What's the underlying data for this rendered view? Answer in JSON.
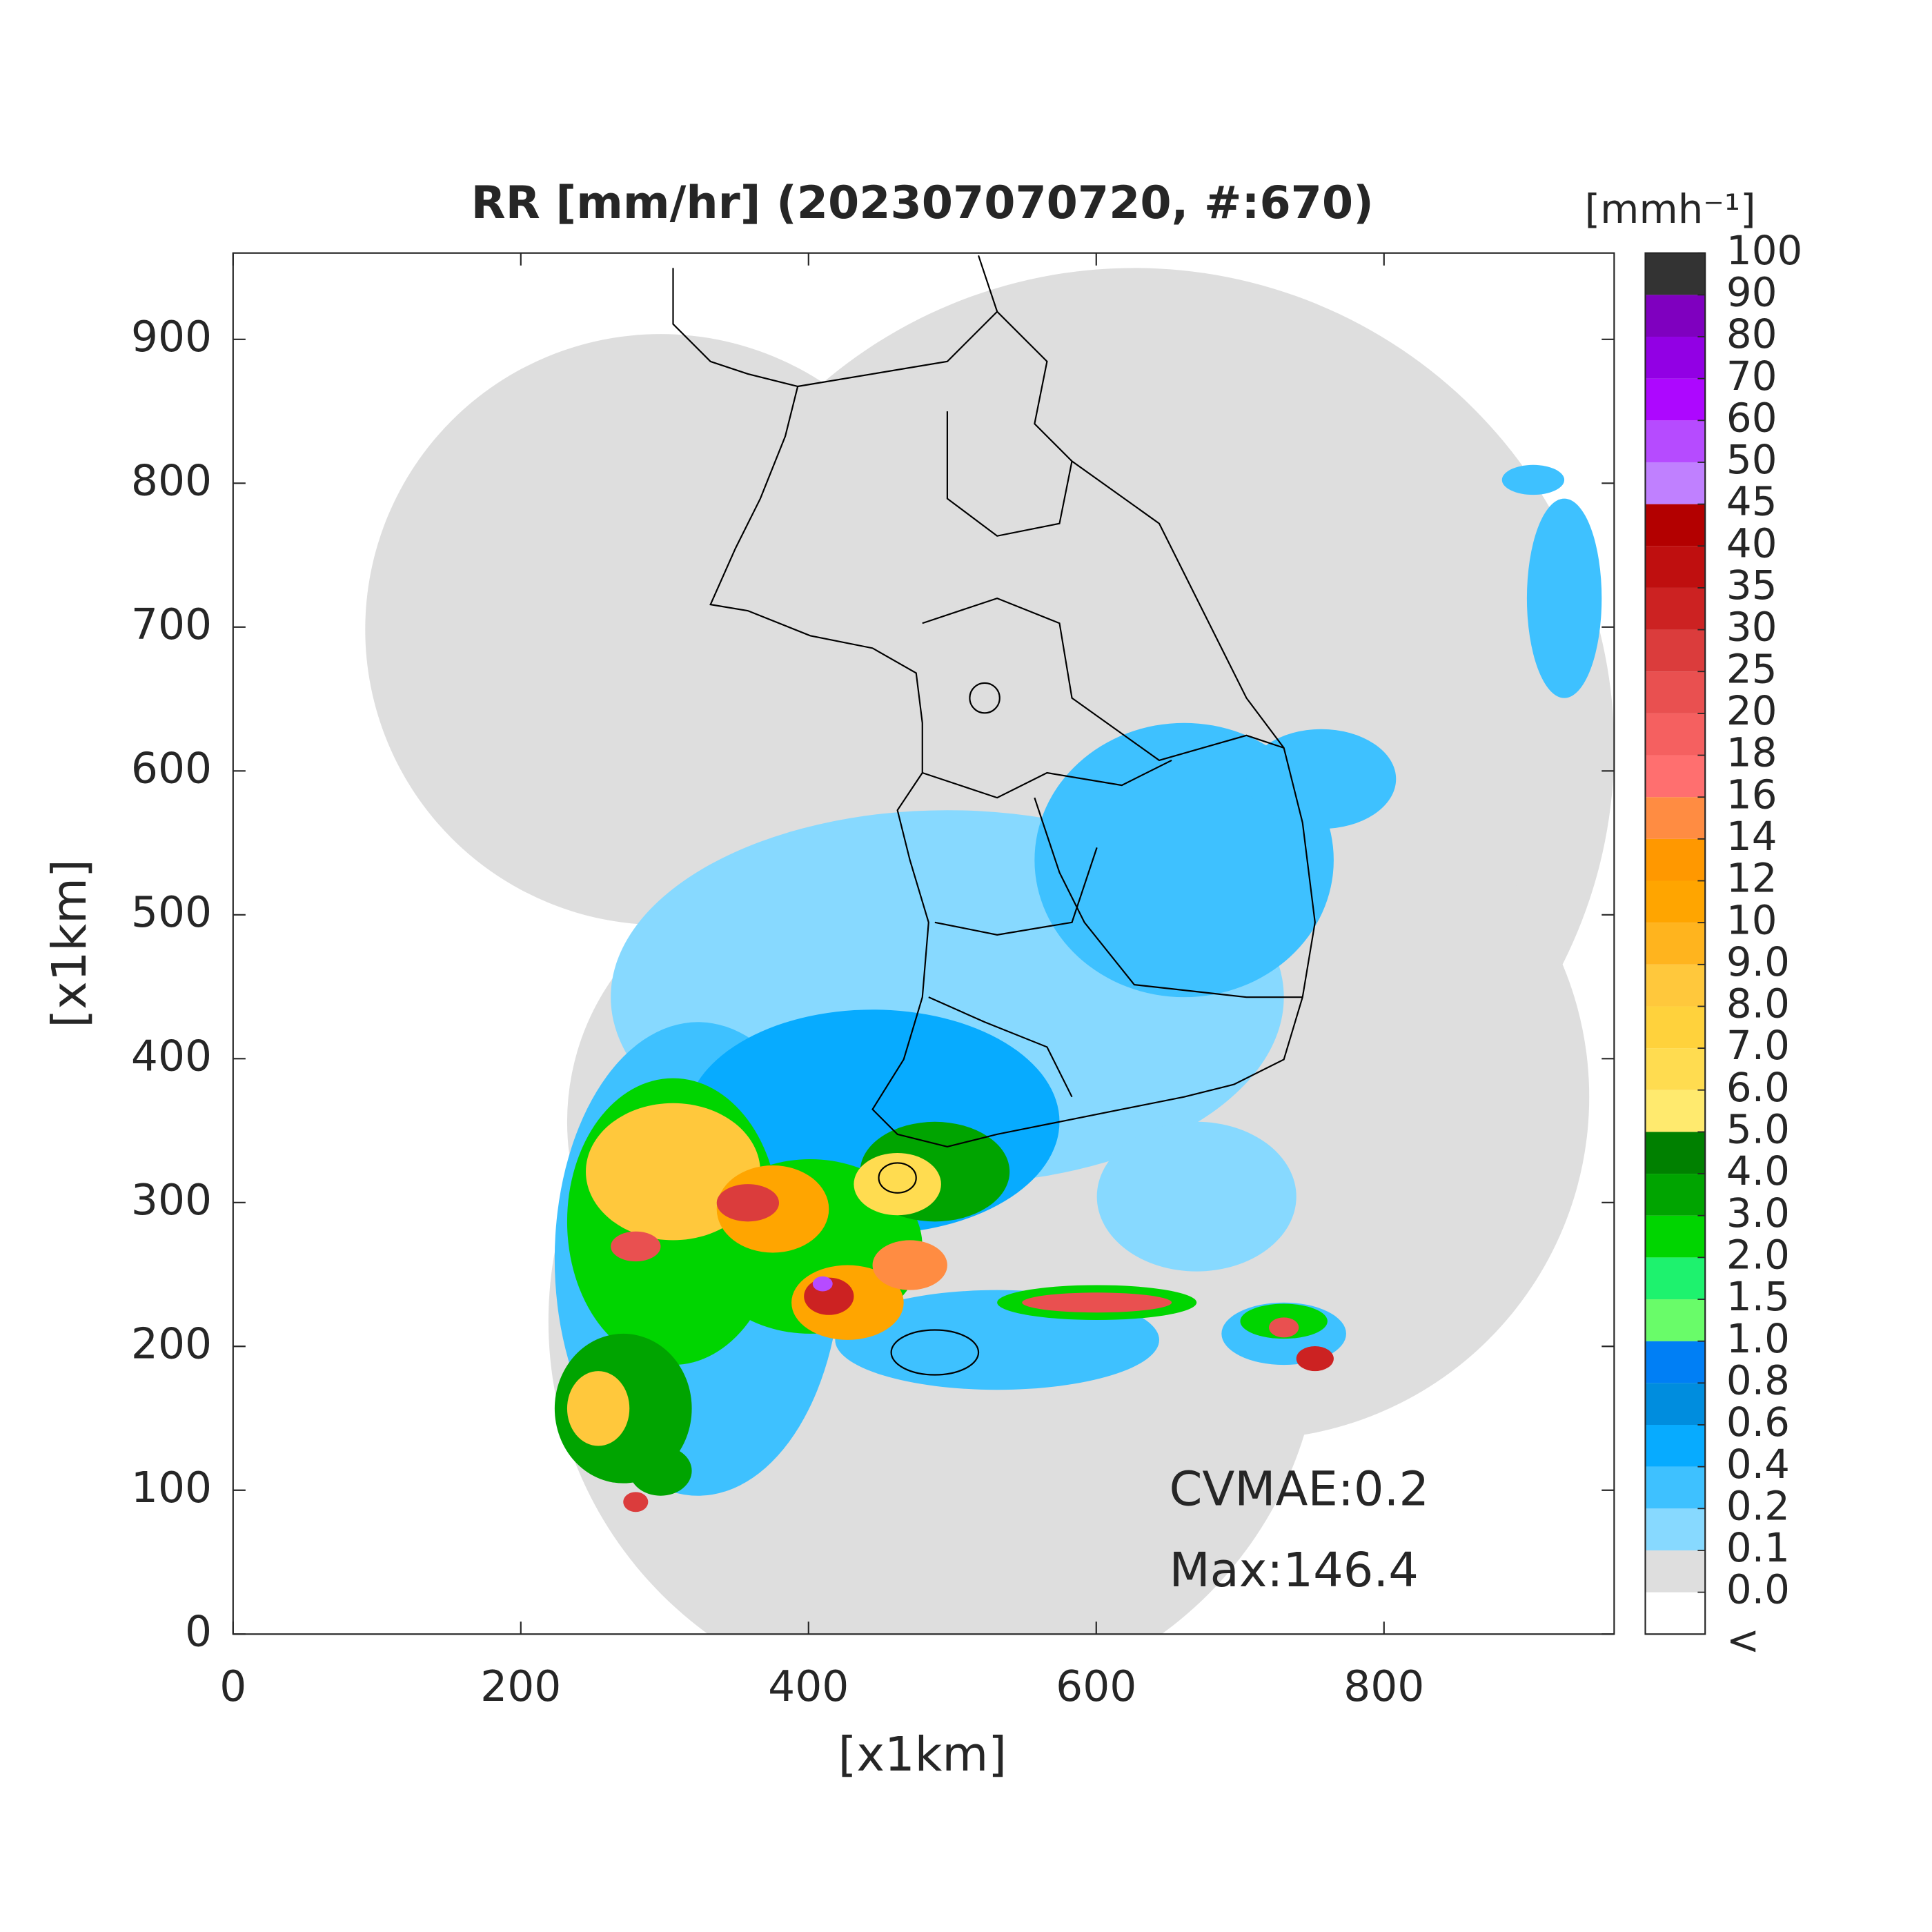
{
  "chart_data": {
    "type": "map",
    "title": "RR [mm/hr] (202307070720, #:670)",
    "xlabel": "[x1km]",
    "ylabel": "[x1km]",
    "xlim": [
      0,
      960
    ],
    "ylim": [
      0,
      960
    ],
    "xticks": [
      0,
      200,
      400,
      600,
      800
    ],
    "yticks": [
      0,
      100,
      200,
      300,
      400,
      500,
      600,
      700,
      800,
      900
    ],
    "annotations": [
      "CVMAE:0.2",
      "Max:146.4"
    ],
    "colorbar": {
      "title": "[mmh⁻¹]",
      "below_label": "<",
      "ticks": [
        {
          "value": 0,
          "label": "0.0"
        },
        0.1,
        0.2,
        0.4,
        0.6,
        0.8,
        {
          "value": 1,
          "label": "1.0"
        },
        1.5,
        {
          "value": 2,
          "label": "2.0"
        },
        {
          "value": 3,
          "label": "3.0"
        },
        {
          "value": 4,
          "label": "4.0"
        },
        {
          "value": 5,
          "label": "5.0"
        },
        {
          "value": 6,
          "label": "6.0"
        },
        {
          "value": 7,
          "label": "7.0"
        },
        {
          "value": 8,
          "label": "8.0"
        },
        {
          "value": 9,
          "label": "9.0"
        },
        10,
        12,
        14,
        16,
        18,
        20,
        25,
        30,
        35,
        40,
        45,
        50,
        60,
        70,
        80,
        90,
        100
      ],
      "colors": [
        "#ffffff",
        "#dedede",
        "#87d9ff",
        "#3ec1ff",
        "#07abff",
        "#008dde",
        "#007ff5",
        "#69fc69",
        "#1ef26e",
        "#00d500",
        "#00a400",
        "#008000",
        "#ffea6e",
        "#ffdc50",
        "#ffd23c",
        "#ffc83c",
        "#ffb41e",
        "#ffa500",
        "#ff9800",
        "#ff8c42",
        "#ff6f6f",
        "#f56060",
        "#e95050",
        "#db3c3c",
        "#cc2222",
        "#bf0f0f",
        "#b30000",
        "#c080ff",
        "#b64bff",
        "#ad07ff",
        "#9200e4",
        "#7f00bf",
        "#333333"
      ]
    }
  }
}
